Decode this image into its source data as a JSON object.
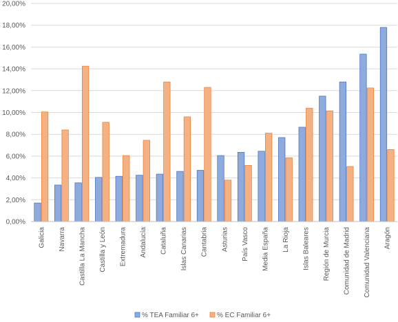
{
  "chart_data": {
    "type": "bar",
    "title": "",
    "xlabel": "",
    "ylabel": "",
    "ylim": [
      0,
      20
    ],
    "y_tick_step": 2,
    "y_tick_format": "percent_2_decimals_comma",
    "grid": "horizontal",
    "legend_position": "bottom",
    "categories": [
      "Galicia",
      "Navarra",
      "Castilla La Mancha",
      "Castilla y León",
      "Extremadura",
      "Andalucía",
      "Cataluña",
      "Islas Canarias",
      "Cantabria",
      "Asturias",
      "País Vasco",
      "Media España",
      "La Rioja",
      "Islas Baleares",
      "Región de Murcia",
      "Comunidad de Madrid",
      "Comunidad Valenciana",
      "Aragón"
    ],
    "series": [
      {
        "name": "% TEA Familiar 6+",
        "color": "#8FAADC",
        "stroke": "#4472C4",
        "values": [
          1.7,
          3.35,
          3.55,
          4.05,
          4.15,
          4.25,
          4.35,
          4.6,
          4.7,
          6.05,
          6.35,
          6.45,
          7.7,
          8.65,
          11.5,
          12.8,
          15.35,
          17.8
        ]
      },
      {
        "name": "% EC Familiar 6+",
        "color": "#F4B183",
        "stroke": "#ED7D31",
        "values": [
          10.05,
          8.4,
          14.25,
          9.1,
          6.05,
          7.45,
          12.8,
          9.6,
          12.3,
          3.8,
          5.15,
          8.1,
          5.85,
          10.4,
          10.15,
          5.05,
          12.25,
          6.6
        ]
      }
    ]
  }
}
